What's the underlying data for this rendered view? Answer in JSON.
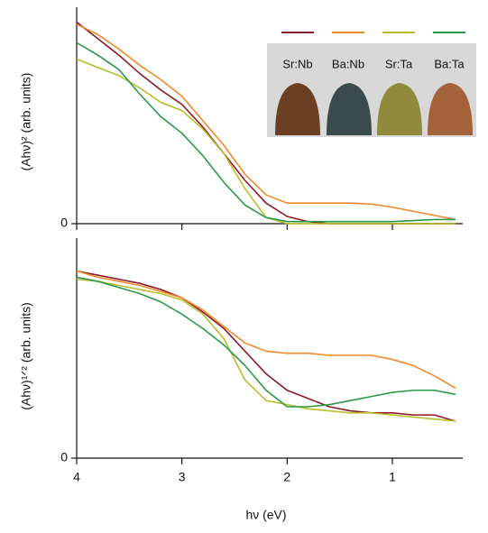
{
  "chart_data": [
    {
      "type": "line",
      "ylabel": "(Ahν)² (arb. units)",
      "x": [
        4,
        3.8,
        3.6,
        3.4,
        3.2,
        3.0,
        2.8,
        2.6,
        2.4,
        2.2,
        2.0,
        1.8,
        1.6,
        1.4,
        1.2,
        1.0,
        0.8,
        0.6,
        0.4
      ],
      "xlim": [
        4,
        0.4
      ],
      "xticks": [
        4,
        3,
        2,
        1
      ],
      "ylim": [
        0,
        1
      ],
      "yticks": [
        0
      ],
      "series": [
        {
          "name": "Sr:Nb",
          "color": "#8b1a2b",
          "values": [
            0.98,
            0.9,
            0.82,
            0.73,
            0.65,
            0.58,
            0.47,
            0.34,
            0.21,
            0.1,
            0.035,
            0.01,
            0,
            0,
            0,
            0,
            0,
            0,
            0
          ]
        },
        {
          "name": "Ba:Nb",
          "color": "#f08a2c",
          "values": [
            0.97,
            0.92,
            0.85,
            0.77,
            0.7,
            0.62,
            0.5,
            0.38,
            0.24,
            0.14,
            0.1,
            0.1,
            0.1,
            0.1,
            0.095,
            0.08,
            0.06,
            0.04,
            0.02
          ]
        },
        {
          "name": "Sr:Ta",
          "color": "#b9bf2a",
          "values": [
            0.8,
            0.76,
            0.72,
            0.66,
            0.59,
            0.55,
            0.46,
            0.34,
            0.17,
            0.03,
            0,
            0,
            0,
            0,
            0,
            0,
            0,
            0,
            0
          ]
        },
        {
          "name": "Ba:Ta",
          "color": "#2a9a4a",
          "values": [
            0.88,
            0.82,
            0.75,
            0.63,
            0.52,
            0.44,
            0.33,
            0.2,
            0.09,
            0.03,
            0.01,
            0.01,
            0.01,
            0.01,
            0.01,
            0.01,
            0.015,
            0.02,
            0.02
          ]
        }
      ]
    },
    {
      "type": "line",
      "ylabel": "(Ahν)¹ᐟ² (arb. units)",
      "xlabel": "hν (eV)",
      "x": [
        4,
        3.8,
        3.6,
        3.4,
        3.2,
        3.0,
        2.8,
        2.6,
        2.4,
        2.2,
        2.0,
        1.8,
        1.6,
        1.4,
        1.2,
        1.0,
        0.8,
        0.6,
        0.4
      ],
      "xlim": [
        4,
        0.4
      ],
      "xticks": [
        4,
        3,
        2,
        1
      ],
      "ylim": [
        0,
        1
      ],
      "yticks": [
        0
      ],
      "series": [
        {
          "name": "Sr:Nb",
          "color": "#8b1a2b",
          "values": [
            0.91,
            0.89,
            0.87,
            0.85,
            0.82,
            0.78,
            0.71,
            0.63,
            0.52,
            0.41,
            0.33,
            0.29,
            0.25,
            0.23,
            0.22,
            0.22,
            0.21,
            0.21,
            0.18
          ]
        },
        {
          "name": "Ba:Nb",
          "color": "#f08a2c",
          "values": [
            0.91,
            0.88,
            0.86,
            0.84,
            0.81,
            0.78,
            0.72,
            0.64,
            0.56,
            0.52,
            0.51,
            0.51,
            0.5,
            0.5,
            0.5,
            0.48,
            0.45,
            0.4,
            0.34
          ]
        },
        {
          "name": "Sr:Ta",
          "color": "#b9bf2a",
          "values": [
            0.87,
            0.86,
            0.84,
            0.82,
            0.8,
            0.77,
            0.7,
            0.58,
            0.38,
            0.28,
            0.26,
            0.24,
            0.23,
            0.22,
            0.22,
            0.21,
            0.2,
            0.19,
            0.18
          ]
        },
        {
          "name": "Ba:Ta",
          "color": "#2a9a4a",
          "values": [
            0.88,
            0.86,
            0.83,
            0.8,
            0.76,
            0.7,
            0.63,
            0.55,
            0.45,
            0.33,
            0.25,
            0.25,
            0.26,
            0.28,
            0.3,
            0.32,
            0.33,
            0.33,
            0.31
          ]
        }
      ]
    }
  ]
}
